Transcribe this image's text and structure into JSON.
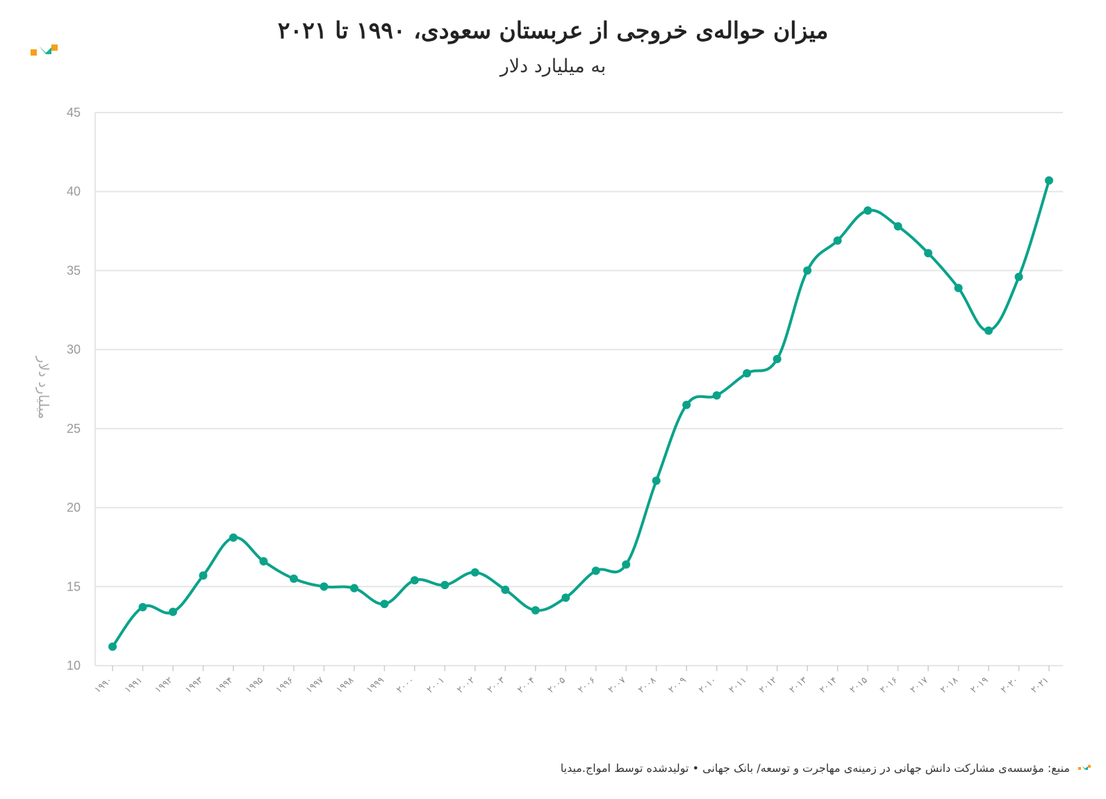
{
  "title": "میزان حواله‌ی خروجی از عربستان سعودی، ۱۹۹۰ تا ۲۰۲۱",
  "subtitle": "به میلیارد دلار",
  "footer": "منبع: مؤسسه‌ی مشارکت دانش جهانی در زمینه‌ی مهاجرت و توسعه/ بانک جهانی • تولیدشده توسط امواج.میدیا",
  "colors": {
    "line": "#0aa38a",
    "logo_orange": "#f5a01a",
    "logo_teal": "#1ab395",
    "grid": "#e6e6e6"
  },
  "chart_data": {
    "type": "line",
    "ylabel": "میلیارد دلار",
    "ylim": [
      10,
      45
    ],
    "yticks": [
      "10",
      "15",
      "20",
      "25",
      "30",
      "35",
      "40",
      "45"
    ],
    "grid": true,
    "categories": [
      "۱۹۹۰",
      "۱۹۹۱",
      "۱۹۹۲",
      "۱۹۹۳",
      "۱۹۹۴",
      "۱۹۹۵",
      "۱۹۹۶",
      "۱۹۹۷",
      "۱۹۹۸",
      "۱۹۹۹",
      "۲۰۰۰",
      "۲۰۰۱",
      "۲۰۰۲",
      "۲۰۰۳",
      "۲۰۰۴",
      "۲۰۰۵",
      "۲۰۰۶",
      "۲۰۰۷",
      "۲۰۰۸",
      "۲۰۰۹",
      "۲۰۱۰",
      "۲۰۱۱",
      "۲۰۱۲",
      "۲۰۱۳",
      "۲۰۱۴",
      "۲۰۱۵",
      "۲۰۱۶",
      "۲۰۱۷",
      "۲۰۱۸",
      "۲۰۱۹",
      "۲۰۲۰",
      "۲۰۲۱"
    ],
    "series": [
      {
        "values": [
          11.2,
          13.7,
          13.4,
          15.7,
          18.1,
          16.6,
          15.5,
          15.0,
          14.9,
          13.9,
          15.4,
          15.1,
          15.9,
          14.8,
          13.5,
          14.3,
          16.0,
          16.4,
          21.7,
          26.5,
          27.1,
          28.5,
          29.4,
          35.0,
          36.9,
          38.8,
          37.8,
          36.1,
          33.9,
          31.2,
          34.6,
          40.7
        ]
      }
    ]
  }
}
